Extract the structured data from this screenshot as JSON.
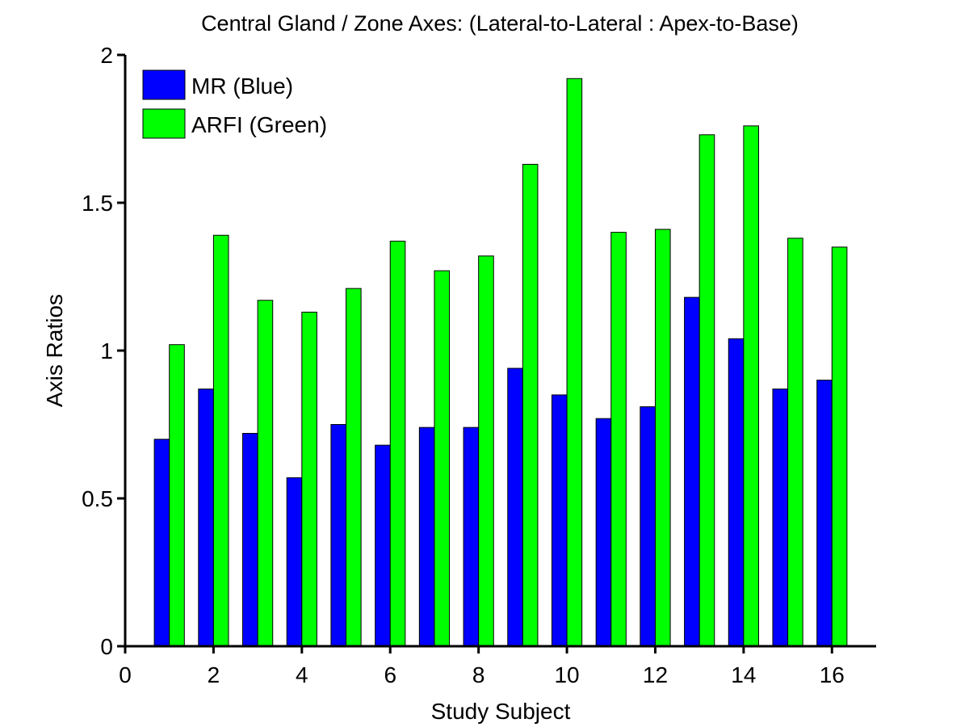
{
  "chart_data": {
    "type": "bar",
    "title": "Central Gland / Zone Axes: (Lateral-to-Lateral : Apex-to-Base)",
    "xlabel": "Study Subject",
    "ylabel": "Axis Ratios",
    "xlim": [
      0,
      17
    ],
    "ylim": [
      0,
      2
    ],
    "xticks": [
      0,
      2,
      4,
      6,
      8,
      10,
      12,
      14,
      16
    ],
    "yticks": [
      0,
      0.5,
      1,
      1.5,
      2
    ],
    "ytick_labels": [
      "0",
      "0.5",
      "1",
      "1.5",
      "2"
    ],
    "legend_position": "top-left",
    "grid": false,
    "categories": [
      1,
      2,
      3,
      4,
      5,
      6,
      7,
      8,
      9,
      10,
      11,
      12,
      13,
      14,
      15,
      16
    ],
    "series": [
      {
        "name": "MR (Blue)",
        "color": "#0000ff",
        "values": [
          0.7,
          0.87,
          0.72,
          0.57,
          0.75,
          0.68,
          0.74,
          0.74,
          0.94,
          0.85,
          0.77,
          0.81,
          1.18,
          1.04,
          0.87,
          0.9
        ]
      },
      {
        "name": "ARFI (Green)",
        "color": "#00ff00",
        "values": [
          1.02,
          1.39,
          1.17,
          1.13,
          1.21,
          1.37,
          1.27,
          1.32,
          1.63,
          1.92,
          1.4,
          1.41,
          1.73,
          1.76,
          1.38,
          1.35
        ]
      }
    ]
  }
}
